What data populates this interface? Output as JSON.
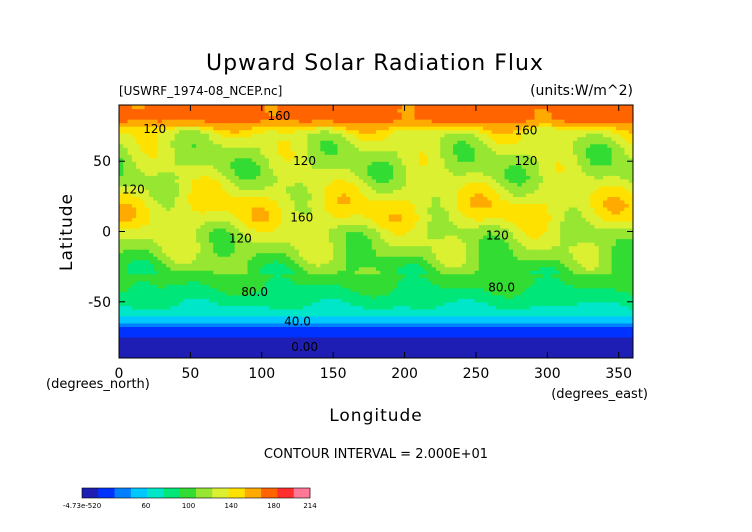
{
  "chart_data": {
    "type": "heatmap",
    "title": "Upward Solar Radiation Flux",
    "file_label": "[USWRF_1974-08_NCEP.nc]",
    "units_label": "(units:W/m^2)",
    "xlabel": "Longitude",
    "ylabel": "Latitude",
    "x_unit_label": "(degrees_east)",
    "y_unit_label": "(degrees_north)",
    "xlim": [
      0,
      360
    ],
    "ylim": [
      -90,
      90
    ],
    "x_ticks": [
      0,
      50,
      100,
      150,
      200,
      250,
      300,
      350
    ],
    "y_ticks": [
      -50,
      0,
      50
    ],
    "contour_interval_text": "CONTOUR INTERVAL = 2.000E+01",
    "contour_labels": [
      {
        "text": "160",
        "x": 112,
        "y": 82
      },
      {
        "text": "120",
        "x": 25,
        "y": 73
      },
      {
        "text": "160",
        "x": 285,
        "y": 72
      },
      {
        "text": "120",
        "x": 285,
        "y": 50
      },
      {
        "text": "120",
        "x": 130,
        "y": 50
      },
      {
        "text": "120",
        "x": 10,
        "y": 30
      },
      {
        "text": "160",
        "x": 128,
        "y": 10
      },
      {
        "text": "120",
        "x": 85,
        "y": -5
      },
      {
        "text": "120",
        "x": 265,
        "y": -3
      },
      {
        "text": "80.0",
        "x": 95,
        "y": -43
      },
      {
        "text": "80.0",
        "x": 268,
        "y": -40
      },
      {
        "text": "40.0",
        "x": 125,
        "y": -64
      },
      {
        "text": "0.00",
        "x": 130,
        "y": -82
      }
    ],
    "zonal_profile": {
      "lat": [
        -90,
        -80,
        -70,
        -64,
        -58,
        -50,
        -40,
        -30,
        -20,
        -10,
        0,
        10,
        20,
        30,
        40,
        50,
        60,
        70,
        80,
        90
      ],
      "value": [
        0,
        0,
        25,
        50,
        68,
        80,
        92,
        100,
        110,
        118,
        122,
        138,
        140,
        130,
        120,
        118,
        122,
        132,
        175,
        175
      ]
    },
    "colorbar": {
      "tick_labels": [
        "-4.73e-520",
        "60",
        "100",
        "140",
        "180",
        "214"
      ],
      "tick_values": [
        0,
        60,
        100,
        140,
        180,
        214
      ],
      "colors": [
        "#1e1eb4",
        "#0032ff",
        "#0080ff",
        "#00c8ff",
        "#00e6c8",
        "#00e678",
        "#32dc32",
        "#96e632",
        "#dcf032",
        "#ffe100",
        "#ffaa00",
        "#ff6400",
        "#ff2d2d",
        "#ff7896"
      ],
      "range": [
        0,
        214
      ]
    }
  }
}
